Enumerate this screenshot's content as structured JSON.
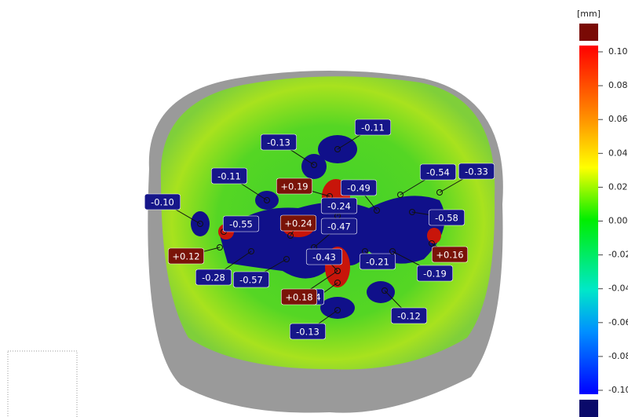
{
  "color_scale": {
    "unit": "[mm]",
    "ticks": [
      "0.10",
      "0.08",
      "0.06",
      "0.04",
      "0.02",
      "0.00",
      "-0.02",
      "-0.04",
      "-0.06",
      "-0.08",
      "-0.10"
    ]
  },
  "annotations": [
    {
      "text": "-0.11",
      "color": "#16168a"
    },
    {
      "text": "-0.13",
      "color": "#16168a"
    },
    {
      "text": "-0.11",
      "color": "#16168a"
    },
    {
      "text": "+0.19",
      "color": "#7a1308"
    },
    {
      "text": "-0.49",
      "color": "#16168a"
    },
    {
      "text": "-0.54",
      "color": "#16168a"
    },
    {
      "text": "-0.33",
      "color": "#16168a"
    },
    {
      "text": "-0.10",
      "color": "#16168a"
    },
    {
      "text": "-0.24",
      "color": "#16168a"
    },
    {
      "text": "+0.24",
      "color": "#7a1308"
    },
    {
      "text": "-0.55",
      "color": "#16168a"
    },
    {
      "text": "-0.47",
      "color": "#16168a"
    },
    {
      "text": "-0.58",
      "color": "#16168a"
    },
    {
      "text": "+0.12",
      "color": "#7a1308"
    },
    {
      "text": "+0.16",
      "color": "#7a1308"
    },
    {
      "text": "-0.43",
      "color": "#16168a"
    },
    {
      "text": "-0.21",
      "color": "#16168a"
    },
    {
      "text": "-0.19",
      "color": "#16168a"
    },
    {
      "text": "-0.28",
      "color": "#16168a"
    },
    {
      "text": "-0.57",
      "color": "#16168a"
    },
    {
      "text": "4",
      "color": "#16168a"
    },
    {
      "text": "+0.18",
      "color": "#7a1308"
    },
    {
      "text": "-0.12",
      "color": "#16168a"
    },
    {
      "text": "-0.13",
      "color": "#16168a"
    }
  ]
}
